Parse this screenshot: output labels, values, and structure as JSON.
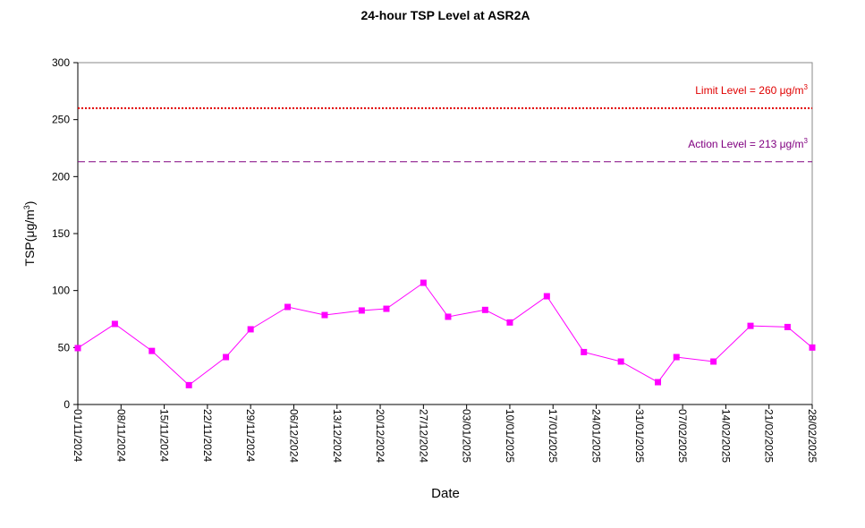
{
  "chart_data": {
    "type": "line",
    "title": "24-hour TSP Level at ASR2A",
    "xlabel": "Date",
    "ylabel": {
      "text": "TSP(μg/m",
      "sup": "3",
      "tail": ")"
    },
    "x": [
      "01/11/2024",
      "07/11/2024",
      "13/11/2024",
      "19/11/2024",
      "25/11/2024",
      "29/11/2024",
      "05/12/2024",
      "11/12/2024",
      "17/12/2024",
      "21/12/2024",
      "27/12/2024",
      "31/12/2024",
      "06/01/2025",
      "10/01/2025",
      "16/01/2025",
      "22/01/2025",
      "28/01/2025",
      "03/02/2025",
      "06/02/2025",
      "12/02/2025",
      "18/02/2025",
      "24/02/2025",
      "28/02/2025"
    ],
    "series": [
      {
        "name": "TSP",
        "color": "#ff00ff",
        "values": [
          49.5,
          70.7,
          47,
          17,
          41.6,
          66,
          85.6,
          78.5,
          82.5,
          84,
          106.8,
          77,
          83,
          72,
          95,
          46,
          37.7,
          19.6,
          41.6,
          37.7,
          69,
          68,
          50
        ]
      }
    ],
    "xlim": [
      "01/11/2024",
      "28/02/2025"
    ],
    "xticks": [
      "01/11/2024",
      "08/11/2024",
      "15/11/2024",
      "22/11/2024",
      "29/11/2024",
      "06/12/2024",
      "13/12/2024",
      "20/12/2024",
      "27/12/2024",
      "03/01/2025",
      "10/01/2025",
      "17/01/2025",
      "24/01/2025",
      "31/01/2025",
      "07/02/2025",
      "14/02/2025",
      "21/02/2025",
      "28/02/2025"
    ],
    "ylim": [
      0,
      300
    ],
    "yticks": [
      0,
      50,
      100,
      150,
      200,
      250,
      300
    ],
    "reference_lines": [
      {
        "value": 260,
        "color": "#e00000",
        "style": "dotted",
        "label": {
          "text": "Limit Level  = 260 μg/m",
          "sup": "3"
        }
      },
      {
        "value": 213,
        "color": "#800080",
        "style": "dashed",
        "label": {
          "text": "Action Level  = 213 μg/m",
          "sup": "3"
        }
      }
    ]
  }
}
